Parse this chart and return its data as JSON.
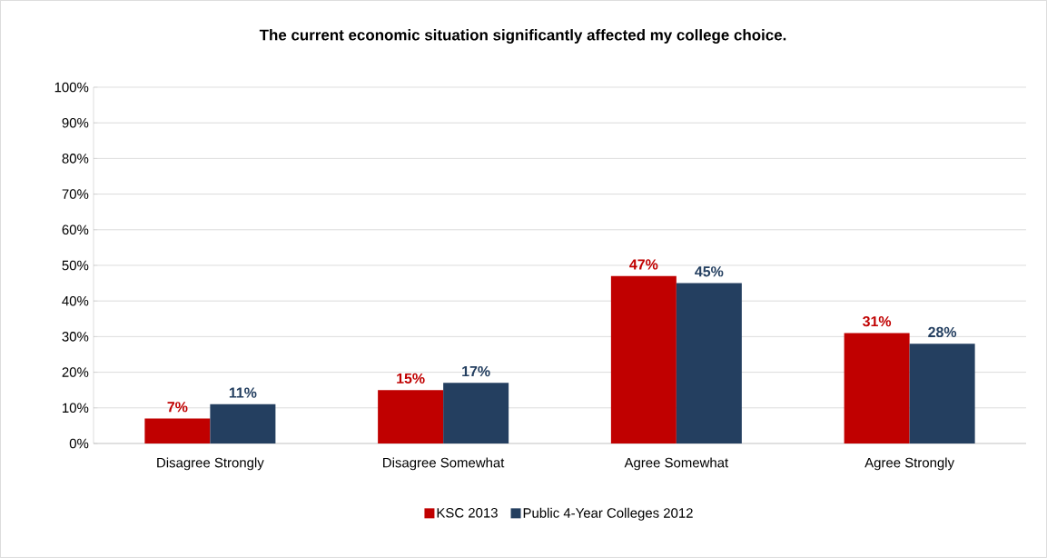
{
  "chart_data": {
    "type": "bar",
    "title": "The current economic situation significantly affected my college choice.",
    "categories": [
      "Disagree Strongly",
      "Disagree Somewhat",
      "Agree Somewhat",
      "Agree Strongly"
    ],
    "series": [
      {
        "name": "KSC 2013",
        "color": "#c00000",
        "values": [
          7,
          15,
          47,
          31
        ],
        "value_labels": [
          "7%",
          "15%",
          "47%",
          "31%"
        ]
      },
      {
        "name": "Public 4-Year Colleges 2012",
        "color": "#243f60",
        "values": [
          11,
          17,
          45,
          28
        ],
        "value_labels": [
          "11%",
          "17%",
          "45%",
          "28%"
        ]
      }
    ],
    "ylim": [
      0,
      100
    ],
    "yticks": [
      {
        "value": 0,
        "label": "0%"
      },
      {
        "value": 10,
        "label": "10%"
      },
      {
        "value": 20,
        "label": "20%"
      },
      {
        "value": 30,
        "label": "30%"
      },
      {
        "value": 40,
        "label": "40%"
      },
      {
        "value": 50,
        "label": "50%"
      },
      {
        "value": 60,
        "label": "60%"
      },
      {
        "value": 70,
        "label": "70%"
      },
      {
        "value": 80,
        "label": "80%"
      },
      {
        "value": 90,
        "label": "90%"
      },
      {
        "value": 100,
        "label": "100%"
      }
    ],
    "grid": "y",
    "legend": "bottom"
  }
}
